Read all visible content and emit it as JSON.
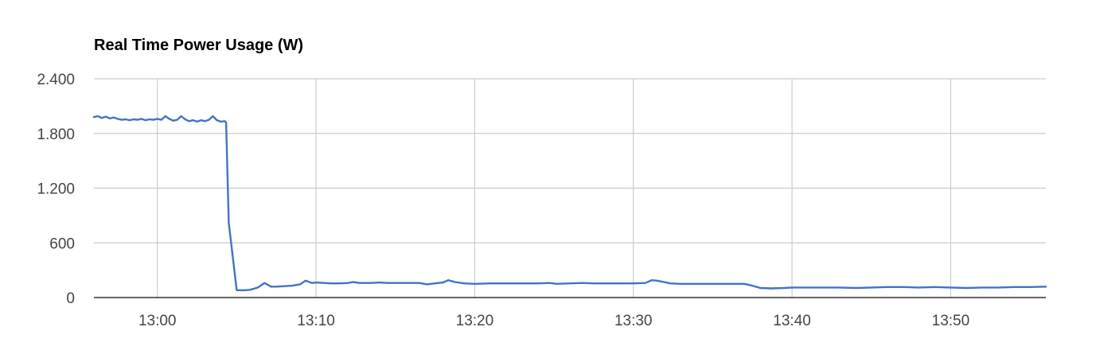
{
  "chart_data": {
    "type": "line",
    "title": "Real Time Power Usage (W)",
    "xlabel": "",
    "ylabel": "",
    "x_start": "12:56",
    "x_end": "13:56",
    "ylim": [
      0,
      2400
    ],
    "y_ticks": [
      0,
      600,
      1200,
      1800,
      2400
    ],
    "y_tick_labels": [
      "0",
      "600",
      "1.200",
      "1.800",
      "2.400"
    ],
    "x_ticks": [
      "13:00",
      "13:10",
      "13:20",
      "13:30",
      "13:40",
      "13:50"
    ],
    "grid": true,
    "legend": "none",
    "colors": {
      "line": "#4472c4",
      "grid": "#cccccc",
      "axis": "#333333"
    },
    "series": [
      {
        "points": [
          [
            "12:56",
            1980
          ],
          [
            "12:56:15",
            1990
          ],
          [
            "12:56:30",
            1970
          ],
          [
            "12:56:45",
            1985
          ],
          [
            "12:57",
            1965
          ],
          [
            "12:57:15",
            1975
          ],
          [
            "12:57:30",
            1960
          ],
          [
            "12:57:45",
            1950
          ],
          [
            "12:58",
            1955
          ],
          [
            "12:58:15",
            1945
          ],
          [
            "12:58:30",
            1955
          ],
          [
            "12:58:45",
            1950
          ],
          [
            "12:59",
            1960
          ],
          [
            "12:59:15",
            1945
          ],
          [
            "12:59:30",
            1955
          ],
          [
            "12:59:45",
            1950
          ],
          [
            "13:00",
            1960
          ],
          [
            "13:00:15",
            1950
          ],
          [
            "13:00:30",
            1990
          ],
          [
            "13:00:45",
            1960
          ],
          [
            "13:01",
            1940
          ],
          [
            "13:01:15",
            1950
          ],
          [
            "13:01:30",
            1990
          ],
          [
            "13:01:45",
            1955
          ],
          [
            "13:02",
            1935
          ],
          [
            "13:02:15",
            1945
          ],
          [
            "13:02:30",
            1930
          ],
          [
            "13:02:45",
            1945
          ],
          [
            "13:03",
            1935
          ],
          [
            "13:03:15",
            1950
          ],
          [
            "13:03:30",
            1990
          ],
          [
            "13:03:45",
            1945
          ],
          [
            "13:04",
            1930
          ],
          [
            "13:04:15",
            1935
          ],
          [
            "13:04:20",
            1920
          ],
          [
            "13:04:30",
            820
          ],
          [
            "13:05",
            80
          ],
          [
            "13:05:30",
            80
          ],
          [
            "13:05:50",
            85
          ],
          [
            "13:06:20",
            110
          ],
          [
            "13:06:45",
            160
          ],
          [
            "13:07:10",
            120
          ],
          [
            "13:07:30",
            120
          ],
          [
            "13:08",
            125
          ],
          [
            "13:08:30",
            130
          ],
          [
            "13:09",
            145
          ],
          [
            "13:09:20",
            185
          ],
          [
            "13:09:45",
            160
          ],
          [
            "13:10",
            165
          ],
          [
            "13:10:30",
            160
          ],
          [
            "13:11",
            155
          ],
          [
            "13:11:30",
            155
          ],
          [
            "13:12",
            160
          ],
          [
            "13:12:20",
            170
          ],
          [
            "13:12:45",
            160
          ],
          [
            "13:13:30",
            160
          ],
          [
            "13:14",
            165
          ],
          [
            "13:14:30",
            160
          ],
          [
            "13:15",
            160
          ],
          [
            "13:15:30",
            160
          ],
          [
            "13:16",
            160
          ],
          [
            "13:16:30",
            160
          ],
          [
            "13:17",
            145
          ],
          [
            "13:17:30",
            155
          ],
          [
            "13:18",
            165
          ],
          [
            "13:18:20",
            190
          ],
          [
            "13:18:45",
            170
          ],
          [
            "13:19:20",
            155
          ],
          [
            "13:20",
            150
          ],
          [
            "13:21",
            155
          ],
          [
            "13:22",
            155
          ],
          [
            "13:23",
            155
          ],
          [
            "13:24",
            155
          ],
          [
            "13:24:45",
            160
          ],
          [
            "13:25:10",
            150
          ],
          [
            "13:26",
            155
          ],
          [
            "13:26:45",
            160
          ],
          [
            "13:27:30",
            155
          ],
          [
            "13:28",
            155
          ],
          [
            "13:29",
            155
          ],
          [
            "13:30",
            155
          ],
          [
            "13:30:45",
            160
          ],
          [
            "13:31:10",
            190
          ],
          [
            "13:31:30",
            185
          ],
          [
            "13:32:20",
            155
          ],
          [
            "13:33",
            150
          ],
          [
            "13:34",
            150
          ],
          [
            "13:35",
            150
          ],
          [
            "13:35:45",
            150
          ],
          [
            "13:36:30",
            150
          ],
          [
            "13:37",
            150
          ],
          [
            "13:37:30",
            130
          ],
          [
            "13:38",
            105
          ],
          [
            "13:38:40",
            100
          ],
          [
            "13:39:30",
            105
          ],
          [
            "13:40",
            110
          ],
          [
            "13:41",
            110
          ],
          [
            "13:42",
            110
          ],
          [
            "13:43",
            110
          ],
          [
            "13:44",
            105
          ],
          [
            "13:45",
            110
          ],
          [
            "13:46",
            115
          ],
          [
            "13:47",
            115
          ],
          [
            "13:48",
            110
          ],
          [
            "13:49",
            115
          ],
          [
            "13:50",
            110
          ],
          [
            "13:51",
            105
          ],
          [
            "13:52",
            110
          ],
          [
            "13:53",
            110
          ],
          [
            "13:54",
            115
          ],
          [
            "13:55",
            115
          ],
          [
            "13:56",
            120
          ]
        ]
      }
    ]
  }
}
